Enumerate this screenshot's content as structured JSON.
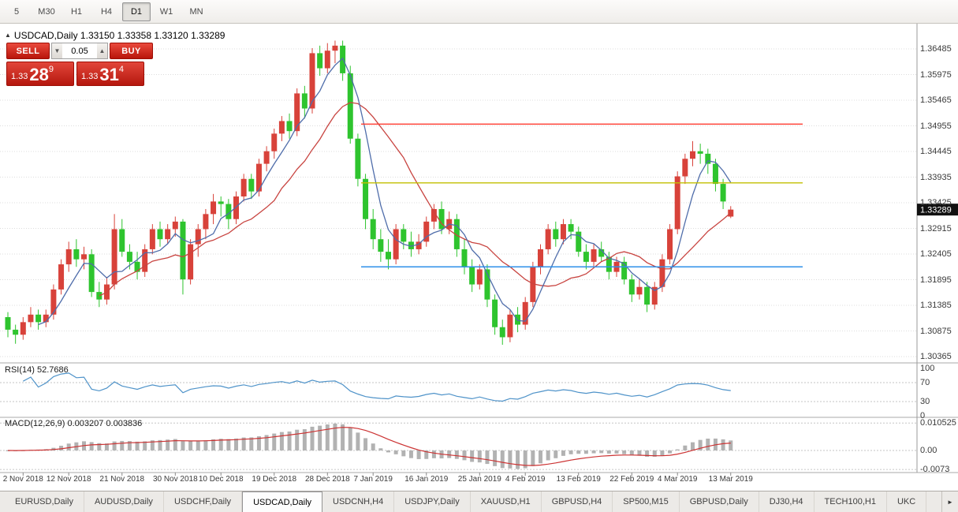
{
  "toolbar": {
    "items": [
      "5",
      "M30",
      "H1",
      "H4",
      "D1",
      "W1",
      "MN"
    ],
    "active": "D1"
  },
  "chart": {
    "header_line": "USDCAD,Daily 1.33150 1.33358 1.33120 1.33289",
    "price_tag": "1.33289",
    "colors": {
      "bull": "#d8423a",
      "bear": "#2ec42e",
      "ma_fast": "#4f6daa",
      "ma_slow": "#c84440",
      "rsi_line": "#4f93c9",
      "macd_bar": "#b2b2b2",
      "macd_signal": "#cc3333",
      "hline_red": "#ff3b30",
      "hline_yellow": "#c3bf00",
      "hline_blue": "#2e90ea",
      "grid": "#dcdcdc",
      "tag_bg": "#111111"
    }
  },
  "trade": {
    "sell": "SELL",
    "buy": "BUY",
    "volume": "0.05",
    "decrease_icon": "▼",
    "increase_icon": "▲",
    "bid": {
      "prefix": "1.33",
      "big": "28",
      "sup": "9"
    },
    "ask": {
      "prefix": "1.33",
      "big": "31",
      "sup": "4"
    }
  },
  "rsi": {
    "header": "RSI(14) 52.7686",
    "period": 14,
    "value": 52.7686,
    "axis_labels": [
      "100",
      "70",
      "30",
      "0"
    ],
    "guide_levels": [
      70,
      30
    ]
  },
  "macd": {
    "header": "MACD(12,26,9) 0.003207 0.003836",
    "params": "12,26,9",
    "value_main": 0.003207,
    "value_signal": 0.003836,
    "axis_labels": [
      "0.010525",
      "0.00",
      "-0.0073"
    ]
  },
  "tabs": {
    "items": [
      "EURUSD,Daily",
      "AUDUSD,Daily",
      "USDCHF,Daily",
      "USDCAD,Daily",
      "USDCNH,H4",
      "USDJPY,Daily",
      "XAUUSD,H1",
      "GBPUSD,H4",
      "SP500,M15",
      "GBPUSD,Daily",
      "DJ30,H4",
      "TECH100,H1",
      "UKC"
    ],
    "active": "USDCAD,Daily",
    "scroll_icon": "►"
  },
  "chart_data": {
    "type": "candlestick",
    "symbol": "USDCAD",
    "timeframe": "Daily",
    "title": "USDCAD,Daily",
    "ohlc_current": {
      "open": 1.3315,
      "high": 1.33358,
      "low": 1.3312,
      "close": 1.33289
    },
    "y_axis": {
      "min": 1.30365,
      "max": 1.36485,
      "ticks": [
        "1.36485",
        "1.35975",
        "1.35465",
        "1.34955",
        "1.34445",
        "1.33935",
        "1.33425",
        "1.32915",
        "1.32405",
        "1.31895",
        "1.31385",
        "1.30875",
        "1.30365"
      ]
    },
    "x_labels": [
      {
        "label": "2 Nov 2018",
        "i": 2
      },
      {
        "label": "12 Nov 2018",
        "i": 8
      },
      {
        "label": "21 Nov 2018",
        "i": 15
      },
      {
        "label": "30 Nov 2018",
        "i": 22
      },
      {
        "label": "10 Dec 2018",
        "i": 28
      },
      {
        "label": "19 Dec 2018",
        "i": 35
      },
      {
        "label": "28 Dec 2018",
        "i": 42
      },
      {
        "label": "7 Jan 2019",
        "i": 48
      },
      {
        "label": "16 Jan 2019",
        "i": 55
      },
      {
        "label": "25 Jan 2019",
        "i": 62
      },
      {
        "label": "4 Feb 2019",
        "i": 68
      },
      {
        "label": "13 Feb 2019",
        "i": 75
      },
      {
        "label": "22 Feb 2019",
        "i": 82
      },
      {
        "label": "4 Mar 2019",
        "i": 88
      },
      {
        "label": "13 Mar 2019",
        "i": 95
      }
    ],
    "hlines": [
      {
        "name": "resistance-line",
        "price": 1.3499,
        "color": "#ff3b30"
      },
      {
        "name": "pivot-line",
        "price": 1.3382,
        "color": "#c3bf00"
      },
      {
        "name": "support-line",
        "price": 1.3215,
        "color": "#2e90ea"
      }
    ],
    "overlays": {
      "sma_fast_period": 5,
      "sma_slow_period": 13
    },
    "candles": [
      [
        1.3115,
        1.3125,
        1.3075,
        1.309
      ],
      [
        1.309,
        1.31,
        1.3062,
        1.308
      ],
      [
        1.308,
        1.3115,
        1.307,
        1.3105
      ],
      [
        1.3105,
        1.3135,
        1.3095,
        1.312
      ],
      [
        1.312,
        1.313,
        1.309,
        1.3105
      ],
      [
        1.3105,
        1.313,
        1.3095,
        1.312
      ],
      [
        1.312,
        1.318,
        1.311,
        1.317
      ],
      [
        1.317,
        1.323,
        1.316,
        1.322
      ],
      [
        1.322,
        1.3265,
        1.3205,
        1.325
      ],
      [
        1.325,
        1.327,
        1.3215,
        1.323
      ],
      [
        1.323,
        1.3255,
        1.321,
        1.324
      ],
      [
        1.324,
        1.325,
        1.3155,
        1.3165
      ],
      [
        1.3165,
        1.3185,
        1.3135,
        1.315
      ],
      [
        1.315,
        1.3195,
        1.314,
        1.318
      ],
      [
        1.318,
        1.332,
        1.317,
        1.329
      ],
      [
        1.329,
        1.331,
        1.3235,
        1.3245
      ],
      [
        1.3245,
        1.326,
        1.321,
        1.3225
      ],
      [
        1.3225,
        1.3245,
        1.319,
        1.3205
      ],
      [
        1.3205,
        1.326,
        1.3195,
        1.325
      ],
      [
        1.325,
        1.33,
        1.324,
        1.329
      ],
      [
        1.329,
        1.3305,
        1.3255,
        1.327
      ],
      [
        1.327,
        1.33,
        1.326,
        1.329
      ],
      [
        1.329,
        1.3315,
        1.3275,
        1.3305
      ],
      [
        1.3305,
        1.331,
        1.316,
        1.319
      ],
      [
        1.319,
        1.327,
        1.318,
        1.326
      ],
      [
        1.326,
        1.33,
        1.3235,
        1.329
      ],
      [
        1.329,
        1.333,
        1.327,
        1.332
      ],
      [
        1.332,
        1.336,
        1.33,
        1.3345
      ],
      [
        1.3345,
        1.3355,
        1.3315,
        1.334
      ],
      [
        1.334,
        1.335,
        1.329,
        1.331
      ],
      [
        1.331,
        1.3365,
        1.33,
        1.3355
      ],
      [
        1.3355,
        1.34,
        1.3345,
        1.339
      ],
      [
        1.339,
        1.34,
        1.335,
        1.3365
      ],
      [
        1.3365,
        1.343,
        1.3355,
        1.342
      ],
      [
        1.342,
        1.3455,
        1.3405,
        1.3445
      ],
      [
        1.3445,
        1.349,
        1.343,
        1.348
      ],
      [
        1.348,
        1.3515,
        1.3465,
        1.3505
      ],
      [
        1.3505,
        1.352,
        1.347,
        1.3485
      ],
      [
        1.3485,
        1.357,
        1.3475,
        1.356
      ],
      [
        1.356,
        1.3575,
        1.351,
        1.353
      ],
      [
        1.353,
        1.365,
        1.352,
        1.364
      ],
      [
        1.364,
        1.3655,
        1.3595,
        1.361
      ],
      [
        1.361,
        1.366,
        1.36,
        1.3645
      ],
      [
        1.3645,
        1.3665,
        1.362,
        1.3655
      ],
      [
        1.3655,
        1.3665,
        1.3585,
        1.36
      ],
      [
        1.36,
        1.3615,
        1.346,
        1.347
      ],
      [
        1.347,
        1.348,
        1.3375,
        1.339
      ],
      [
        1.339,
        1.34,
        1.329,
        1.331
      ],
      [
        1.331,
        1.333,
        1.325,
        1.327
      ],
      [
        1.327,
        1.329,
        1.3225,
        1.3245
      ],
      [
        1.3245,
        1.327,
        1.321,
        1.323
      ],
      [
        1.323,
        1.33,
        1.322,
        1.329
      ],
      [
        1.329,
        1.33,
        1.325,
        1.3265
      ],
      [
        1.3265,
        1.3285,
        1.3235,
        1.325
      ],
      [
        1.325,
        1.328,
        1.324,
        1.3265
      ],
      [
        1.3265,
        1.3315,
        1.3255,
        1.3305
      ],
      [
        1.3305,
        1.334,
        1.329,
        1.333
      ],
      [
        1.333,
        1.3345,
        1.328,
        1.329
      ],
      [
        1.329,
        1.3325,
        1.328,
        1.331
      ],
      [
        1.331,
        1.332,
        1.3235,
        1.325
      ],
      [
        1.325,
        1.327,
        1.32,
        1.3215
      ],
      [
        1.3215,
        1.323,
        1.3165,
        1.318
      ],
      [
        1.318,
        1.322,
        1.317,
        1.321
      ],
      [
        1.321,
        1.322,
        1.3135,
        1.315
      ],
      [
        1.315,
        1.316,
        1.308,
        1.3095
      ],
      [
        1.3095,
        1.311,
        1.306,
        1.3075
      ],
      [
        1.3075,
        1.313,
        1.3065,
        1.312
      ],
      [
        1.312,
        1.3135,
        1.3085,
        1.31
      ],
      [
        1.31,
        1.3155,
        1.309,
        1.3145
      ],
      [
        1.3145,
        1.3225,
        1.3135,
        1.3215
      ],
      [
        1.3215,
        1.326,
        1.32,
        1.325
      ],
      [
        1.325,
        1.33,
        1.324,
        1.329
      ],
      [
        1.329,
        1.3305,
        1.3255,
        1.327
      ],
      [
        1.327,
        1.331,
        1.326,
        1.33
      ],
      [
        1.33,
        1.331,
        1.327,
        1.3285
      ],
      [
        1.3285,
        1.3295,
        1.3235,
        1.3245
      ],
      [
        1.3245,
        1.326,
        1.321,
        1.3225
      ],
      [
        1.3225,
        1.326,
        1.3215,
        1.325
      ],
      [
        1.325,
        1.3265,
        1.3225,
        1.3235
      ],
      [
        1.3235,
        1.3245,
        1.319,
        1.3205
      ],
      [
        1.3205,
        1.3235,
        1.3195,
        1.3225
      ],
      [
        1.3225,
        1.3235,
        1.318,
        1.319
      ],
      [
        1.319,
        1.32,
        1.3145,
        1.316
      ],
      [
        1.316,
        1.319,
        1.315,
        1.3175
      ],
      [
        1.3175,
        1.3185,
        1.3125,
        1.314
      ],
      [
        1.314,
        1.3185,
        1.313,
        1.3175
      ],
      [
        1.3175,
        1.324,
        1.3165,
        1.323
      ],
      [
        1.323,
        1.33,
        1.322,
        1.329
      ],
      [
        1.329,
        1.3405,
        1.328,
        1.3395
      ],
      [
        1.3395,
        1.344,
        1.338,
        1.343
      ],
      [
        1.343,
        1.3465,
        1.3415,
        1.3445
      ],
      [
        1.3445,
        1.346,
        1.342,
        1.344
      ],
      [
        1.344,
        1.345,
        1.34,
        1.342
      ],
      [
        1.342,
        1.343,
        1.3365,
        1.338
      ],
      [
        1.338,
        1.339,
        1.333,
        1.3345
      ],
      [
        1.3315,
        1.33358,
        1.3312,
        1.33289
      ]
    ]
  }
}
